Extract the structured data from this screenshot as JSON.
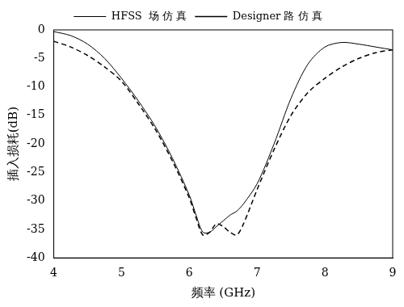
{
  "chart_data": {
    "type": "line",
    "x_label": "频率 (GHz)",
    "y_label": "插入损耗(dB)",
    "x": [
      4,
      4.25,
      4.5,
      4.75,
      5,
      5.25,
      5.5,
      5.75,
      6,
      6.1,
      6.2,
      6.3,
      6.4,
      6.5,
      6.6,
      6.7,
      6.8,
      7,
      7.25,
      7.5,
      7.75,
      8,
      8.25,
      8.5,
      8.75,
      9
    ],
    "series": [
      {
        "name": "HFSS  场 仿 真",
        "color": "#000000",
        "line_style": "solid",
        "values": [
          -0.3,
          -1,
          -2.5,
          -5,
          -8.5,
          -12.5,
          -17,
          -22.5,
          -29,
          -32.5,
          -35.5,
          -35.5,
          -34.5,
          -33.5,
          -32.5,
          -31.8,
          -30.5,
          -27,
          -20,
          -12,
          -6,
          -3,
          -2.2,
          -2.5,
          -3,
          -3.5
        ]
      },
      {
        "name": "Designer 路 仿 真",
        "color": "#000000",
        "line_style": "dashed",
        "values": [
          -2,
          -3,
          -4.5,
          -6.5,
          -9,
          -13,
          -17.5,
          -23,
          -29.5,
          -33,
          -36,
          -35.5,
          -34,
          -34.5,
          -35.5,
          -36,
          -34,
          -28,
          -21,
          -15,
          -11,
          -8.5,
          -6.5,
          -5,
          -4,
          -3.5
        ]
      }
    ],
    "xlim": [
      4,
      9
    ],
    "xticks": [
      4,
      5,
      6,
      7,
      8,
      9
    ],
    "ylim": [
      -40,
      0
    ],
    "yticks": [
      -40,
      -35,
      -30,
      -25,
      -20,
      -15,
      -10,
      -5,
      0
    ],
    "grid": false,
    "legend": "top"
  }
}
